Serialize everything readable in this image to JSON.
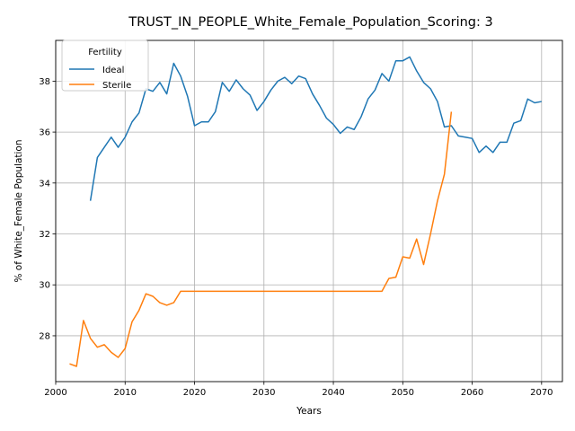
{
  "chart_data": {
    "type": "line",
    "title": "TRUST_IN_PEOPLE_White_Female_Population_Scoring: 3",
    "xlabel": "Years",
    "ylabel": "% of White_Female Population",
    "xlim": [
      2000,
      2073
    ],
    "ylim": [
      26.2,
      39.6
    ],
    "xticks": [
      2000,
      2010,
      2020,
      2030,
      2040,
      2050,
      2060,
      2070
    ],
    "yticks": [
      28,
      30,
      32,
      34,
      36,
      38
    ],
    "grid": true,
    "legend": {
      "title": "Fertility",
      "placement": "top-left"
    },
    "colors": {
      "Ideal": "#1f77b4",
      "Sterile": "#ff7f0e"
    },
    "series": [
      {
        "name": "Ideal",
        "x": [
          2005,
          2006,
          2007,
          2008,
          2009,
          2010,
          2011,
          2012,
          2013,
          2014,
          2015,
          2016,
          2017,
          2018,
          2019,
          2020,
          2021,
          2022,
          2023,
          2024,
          2025,
          2026,
          2027,
          2028,
          2029,
          2030,
          2031,
          2032,
          2033,
          2034,
          2035,
          2036,
          2037,
          2038,
          2039,
          2040,
          2041,
          2042,
          2043,
          2044,
          2045,
          2046,
          2047,
          2048,
          2049,
          2050,
          2051,
          2052,
          2053,
          2054,
          2055,
          2056,
          2057,
          2058,
          2059,
          2060,
          2061,
          2062,
          2063,
          2064,
          2065,
          2066,
          2067,
          2068,
          2069,
          2070
        ],
        "y": [
          33.3,
          35.0,
          35.4,
          35.8,
          35.4,
          35.8,
          36.4,
          36.75,
          37.7,
          37.6,
          37.95,
          37.5,
          38.7,
          38.2,
          37.4,
          36.25,
          36.4,
          36.4,
          36.8,
          37.95,
          37.6,
          38.05,
          37.7,
          37.45,
          36.85,
          37.2,
          37.65,
          38.0,
          38.15,
          37.9,
          38.2,
          38.1,
          37.5,
          37.05,
          36.55,
          36.3,
          35.95,
          36.2,
          36.1,
          36.6,
          37.3,
          37.65,
          38.3,
          38.0,
          38.8,
          38.8,
          38.95,
          38.4,
          37.95,
          37.7,
          37.2,
          36.2,
          36.25,
          35.85,
          35.8,
          35.75,
          35.2,
          35.45,
          35.2,
          35.6,
          35.6,
          36.35,
          36.45,
          37.3,
          37.15,
          37.2
        ]
      },
      {
        "name": "Sterile",
        "x": [
          2002,
          2003,
          2004,
          2005,
          2006,
          2007,
          2008,
          2009,
          2010,
          2011,
          2012,
          2013,
          2014,
          2015,
          2016,
          2017,
          2018,
          2019,
          2020,
          2021,
          2022,
          2023,
          2024,
          2025,
          2026,
          2027,
          2028,
          2029,
          2030,
          2031,
          2032,
          2033,
          2034,
          2035,
          2036,
          2037,
          2038,
          2039,
          2040,
          2041,
          2042,
          2043,
          2044,
          2045,
          2046,
          2047,
          2048,
          2049,
          2050,
          2051,
          2052,
          2053,
          2054,
          2055,
          2056,
          2057
        ],
        "y": [
          26.9,
          26.8,
          28.6,
          27.9,
          27.55,
          27.65,
          27.35,
          27.15,
          27.5,
          28.55,
          29.0,
          29.65,
          29.55,
          29.3,
          29.2,
          29.3,
          29.75,
          29.75,
          29.75,
          29.75,
          29.75,
          29.75,
          29.75,
          29.75,
          29.75,
          29.75,
          29.75,
          29.75,
          29.75,
          29.75,
          29.75,
          29.75,
          29.75,
          29.75,
          29.75,
          29.75,
          29.75,
          29.75,
          29.75,
          29.75,
          29.75,
          29.75,
          29.75,
          29.75,
          29.75,
          29.75,
          30.25,
          30.3,
          31.1,
          31.05,
          31.8,
          30.8,
          32.0,
          33.3,
          34.35,
          36.8
        ]
      }
    ]
  }
}
